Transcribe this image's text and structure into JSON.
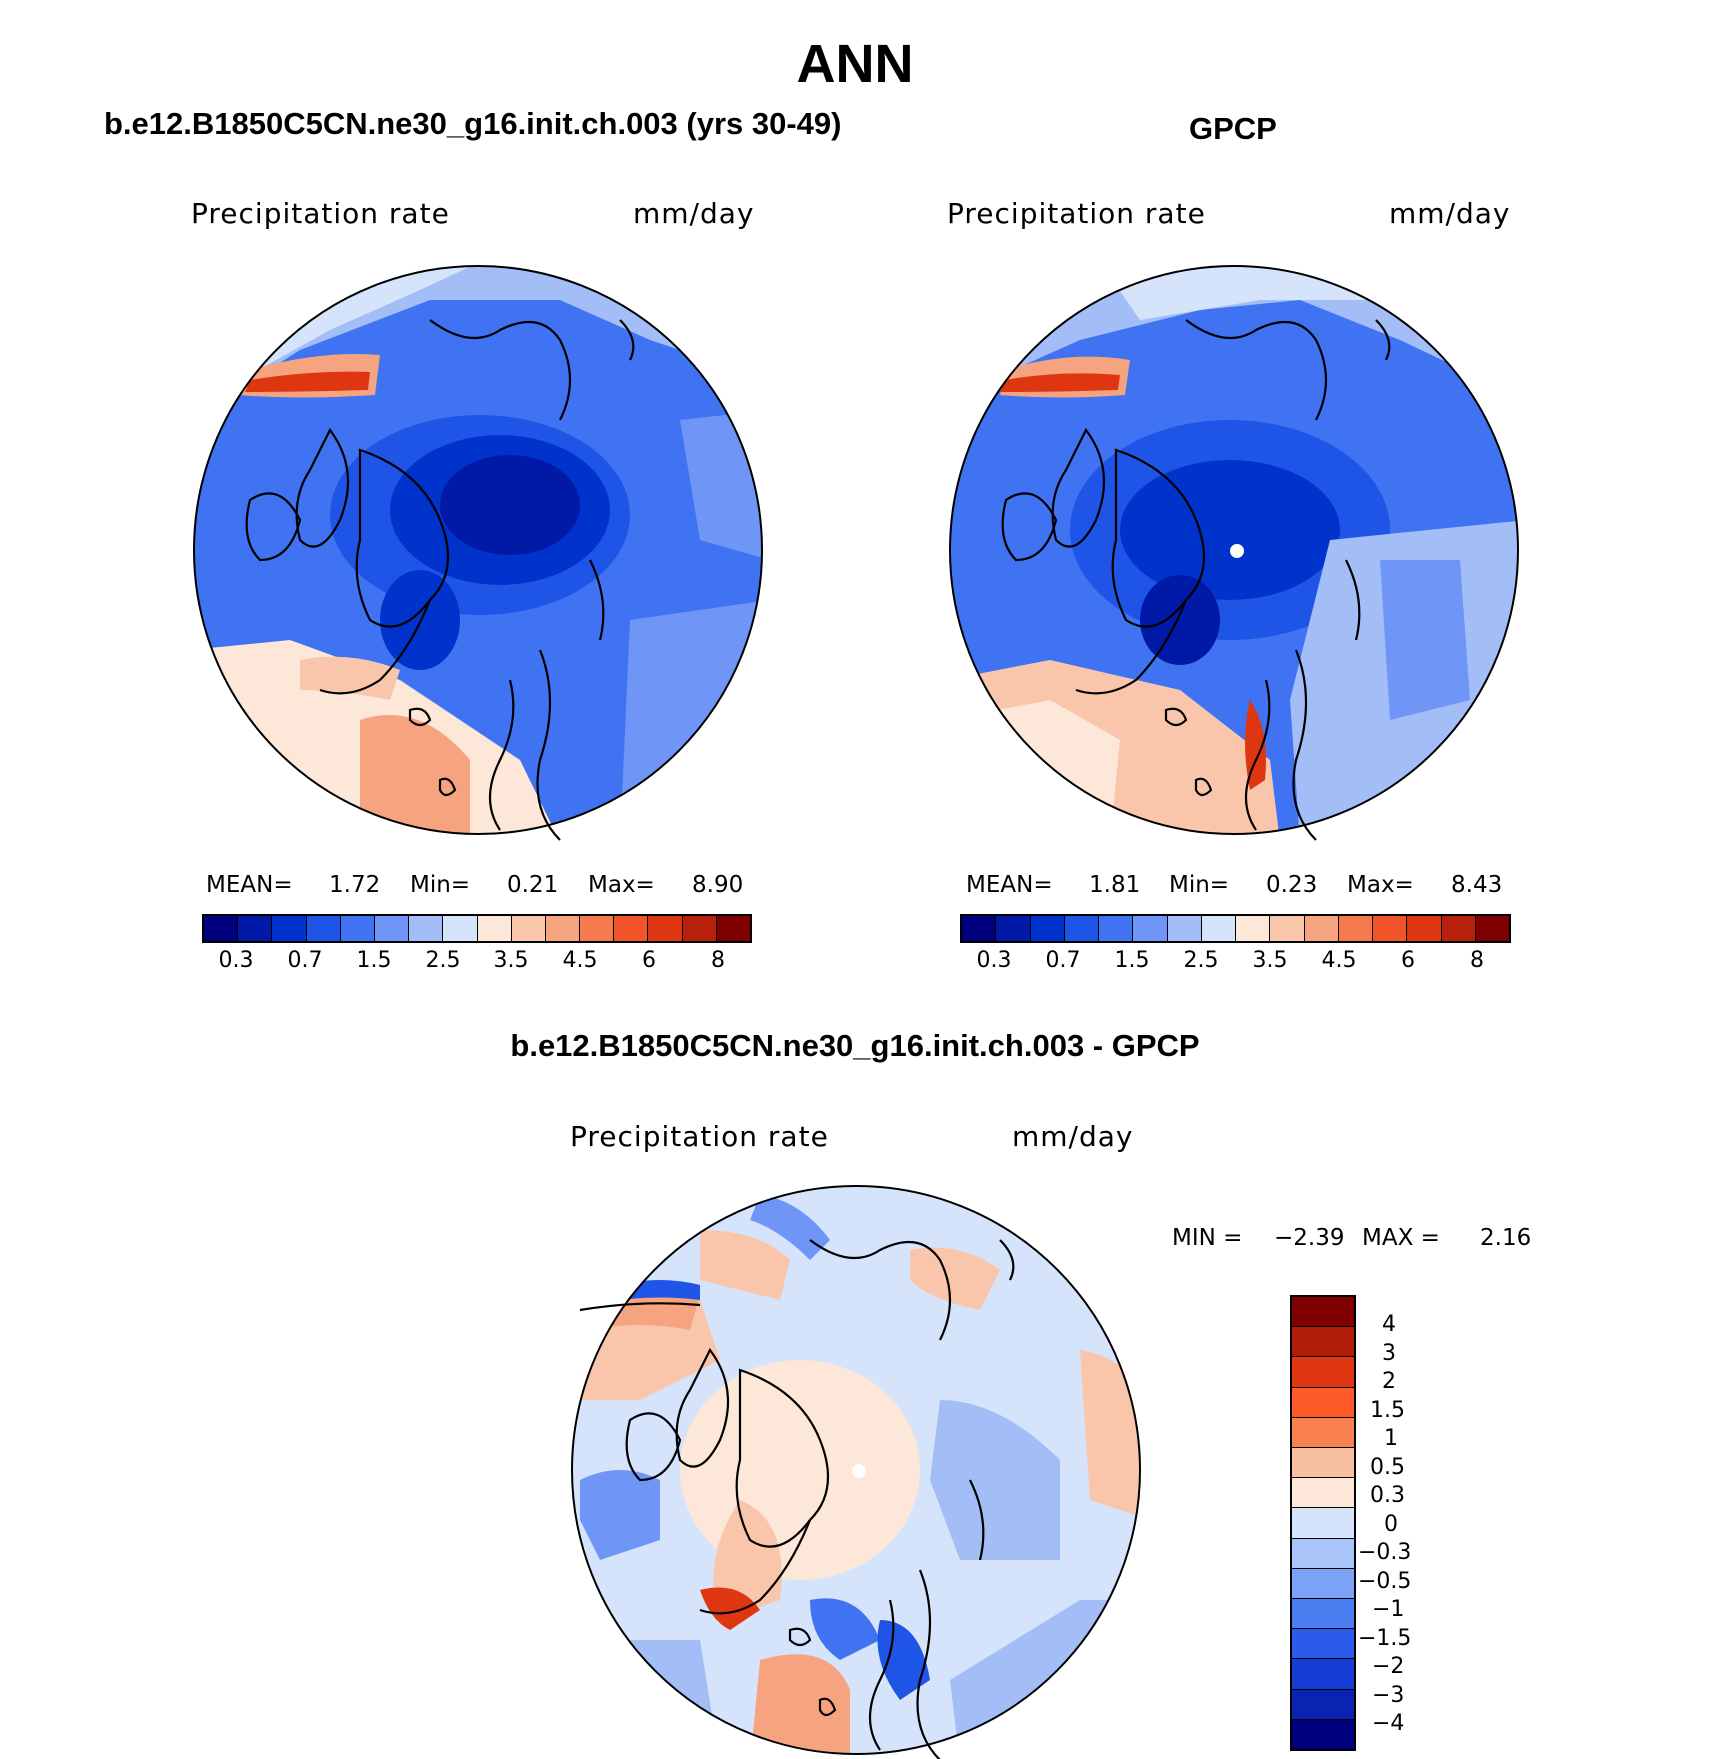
{
  "title": "ANN",
  "panels": {
    "model": {
      "title": "b.e12.B1850C5CN.ne30_g16.init.ch.003 (yrs 30-49)",
      "left_label": "Precipitation rate",
      "right_label": "mm/day",
      "stats": {
        "mean_label": "MEAN=",
        "mean": "1.72",
        "min_label": "Min=",
        "min": "0.21",
        "max_label": "Max=",
        "max": "8.90"
      }
    },
    "obs": {
      "title": "GPCP",
      "left_label": "Precipitation rate",
      "right_label": "mm/day",
      "stats": {
        "mean_label": "MEAN=",
        "mean": "1.81",
        "min_label": "Min=",
        "min": "0.23",
        "max_label": "Max=",
        "max": "8.43"
      }
    },
    "diff": {
      "title": "b.e12.B1850C5CN.ne30_g16.init.ch.003 - GPCP",
      "left_label": "Precipitation rate",
      "right_label": "mm/day",
      "stats": {
        "min_label": "MIN =",
        "min": "−2.39",
        "max_label": "MAX =",
        "max": "2.16"
      }
    }
  },
  "colorbar_abs": {
    "colors": [
      "#00007f",
      "#0019a6",
      "#0033cc",
      "#1f55e6",
      "#3f73f2",
      "#6f96f7",
      "#a3bdf7",
      "#d6e4fb",
      "#fce7d9",
      "#f9c6ab",
      "#f6a37f",
      "#f57b4f",
      "#f2542a",
      "#df3612",
      "#b7200a",
      "#7f0000"
    ],
    "tick_labels": [
      "0.3",
      "0.7",
      "1.5",
      "2.5",
      "3.5",
      "4.5",
      "6",
      "8"
    ]
  },
  "colorbar_diff": {
    "colors": [
      "#7f0000",
      "#b01d0a",
      "#df3612",
      "#fd5a27",
      "#f8814f",
      "#f8bfa0",
      "#fce7d9",
      "#d6e4fb",
      "#a9c4f9",
      "#7aa2f6",
      "#4b7ef1",
      "#2a5bea",
      "#163dd6",
      "#0a23b0",
      "#00007f"
    ],
    "tick_labels": [
      "4",
      "3",
      "2",
      "1.5",
      "1",
      "0.5",
      "0.3",
      "0",
      "−0.3",
      "−0.5",
      "−1",
      "−1.5",
      "−2",
      "−3",
      "−4"
    ]
  }
}
